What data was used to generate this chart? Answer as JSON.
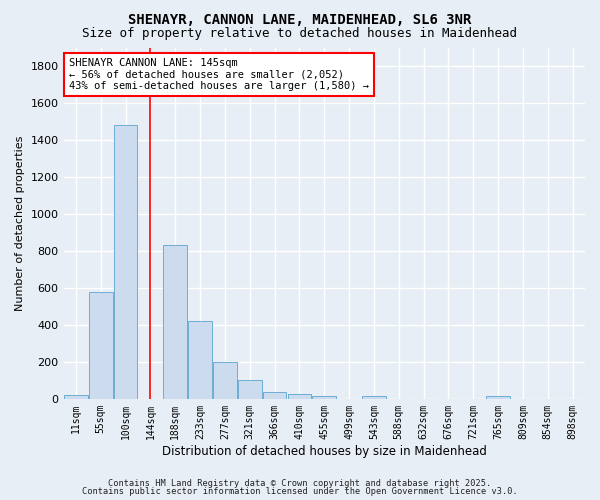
{
  "title": "SHENAYR, CANNON LANE, MAIDENHEAD, SL6 3NR",
  "subtitle": "Size of property relative to detached houses in Maidenhead",
  "xlabel": "Distribution of detached houses by size in Maidenhead",
  "ylabel": "Number of detached properties",
  "bar_labels": [
    "11sqm",
    "55sqm",
    "100sqm",
    "144sqm",
    "188sqm",
    "233sqm",
    "277sqm",
    "321sqm",
    "366sqm",
    "410sqm",
    "455sqm",
    "499sqm",
    "543sqm",
    "588sqm",
    "632sqm",
    "676sqm",
    "721sqm",
    "765sqm",
    "809sqm",
    "854sqm",
    "898sqm"
  ],
  "bar_values": [
    20,
    580,
    1480,
    0,
    830,
    420,
    200,
    100,
    35,
    25,
    15,
    0,
    15,
    0,
    0,
    0,
    0,
    15,
    0,
    0,
    0
  ],
  "bar_color": "#ccdcee",
  "bar_edge_color": "#6baed6",
  "ylim": [
    0,
    1900
  ],
  "yticks": [
    0,
    200,
    400,
    600,
    800,
    1000,
    1200,
    1400,
    1600,
    1800
  ],
  "red_line_index": 3,
  "annotation_line1": "SHENAYR CANNON LANE: 145sqm",
  "annotation_line2": "← 56% of detached houses are smaller (2,052)",
  "annotation_line3": "43% of semi-detached houses are larger (1,580) →",
  "footer1": "Contains HM Land Registry data © Crown copyright and database right 2025.",
  "footer2": "Contains public sector information licensed under the Open Government Licence v3.0.",
  "bg_color": "#e8eef5",
  "plot_bg_color": "#e8eef5",
  "title_fontsize": 10,
  "subtitle_fontsize": 9,
  "ylabel_text": "Number of detached properties"
}
